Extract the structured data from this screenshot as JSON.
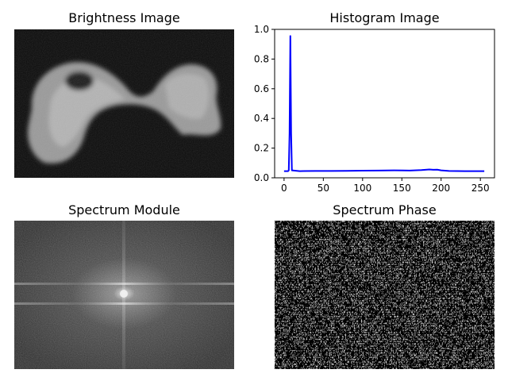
{
  "panels": {
    "brightness_title": "Brightness Image",
    "histogram_title": "Histogram Image",
    "module_title": "Spectrum Module",
    "phase_title": "Spectrum Phase"
  },
  "chart_data": [
    {
      "type": "line",
      "title": "Histogram Image",
      "xlabel": "",
      "ylabel": "",
      "xlim": [
        -12,
        268
      ],
      "ylim": [
        0,
        1.0
      ],
      "xticks": [
        0,
        50,
        100,
        150,
        200,
        250
      ],
      "yticks": [
        0.0,
        0.2,
        0.4,
        0.6,
        0.8,
        1.0
      ],
      "xtick_labels": [
        "0",
        "50",
        "100",
        "150",
        "200",
        "250"
      ],
      "ytick_labels": [
        "0.0",
        "0.2",
        "0.4",
        "0.6",
        "0.8",
        "1.0"
      ],
      "grid": false,
      "series": [
        {
          "color": "#0000ff",
          "x": [
            0,
            5,
            6,
            7,
            8,
            9,
            10,
            20,
            40,
            60,
            80,
            100,
            120,
            140,
            160,
            175,
            185,
            190,
            195,
            200,
            210,
            230,
            255
          ],
          "y": [
            0.045,
            0.045,
            0.05,
            0.3,
            0.955,
            0.3,
            0.05,
            0.045,
            0.046,
            0.046,
            0.047,
            0.048,
            0.049,
            0.05,
            0.049,
            0.052,
            0.056,
            0.054,
            0.055,
            0.05,
            0.046,
            0.045,
            0.045
          ]
        }
      ]
    }
  ],
  "colors": {
    "line": "#0000ff",
    "axis": "#000000",
    "image_background": "#0a0a0a"
  }
}
